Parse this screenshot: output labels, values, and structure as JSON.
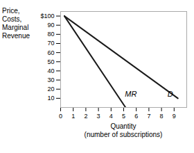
{
  "chart_data": {
    "type": "line",
    "ylabel": "Price,\nCosts,\nMarginal\nRevenue",
    "xlabel": "Quantity\n(number of subscriptions)",
    "xlim": [
      0,
      10
    ],
    "ylim": [
      0,
      105
    ],
    "xticks": [
      0,
      1,
      2,
      3,
      4,
      5,
      6,
      7,
      8,
      9
    ],
    "yticks": [
      10,
      20,
      30,
      40,
      50,
      60,
      70,
      80,
      90,
      {
        "value": 100,
        "label": "$100"
      }
    ],
    "grid": false,
    "series": [
      {
        "color": "#1a1a1a",
        "x": [
          0.3,
          9.3
        ],
        "values": [
          100,
          10
        ]
      },
      {
        "color": "#1a1a1a",
        "x": [
          0.3,
          5.15
        ],
        "values": [
          100,
          0
        ]
      }
    ],
    "annotations": [
      {
        "text": "D",
        "x": 8.7,
        "y": 12,
        "anchor": "middle"
      },
      {
        "text": "MR",
        "x": 5.1,
        "y": 12,
        "anchor": "start"
      }
    ]
  }
}
